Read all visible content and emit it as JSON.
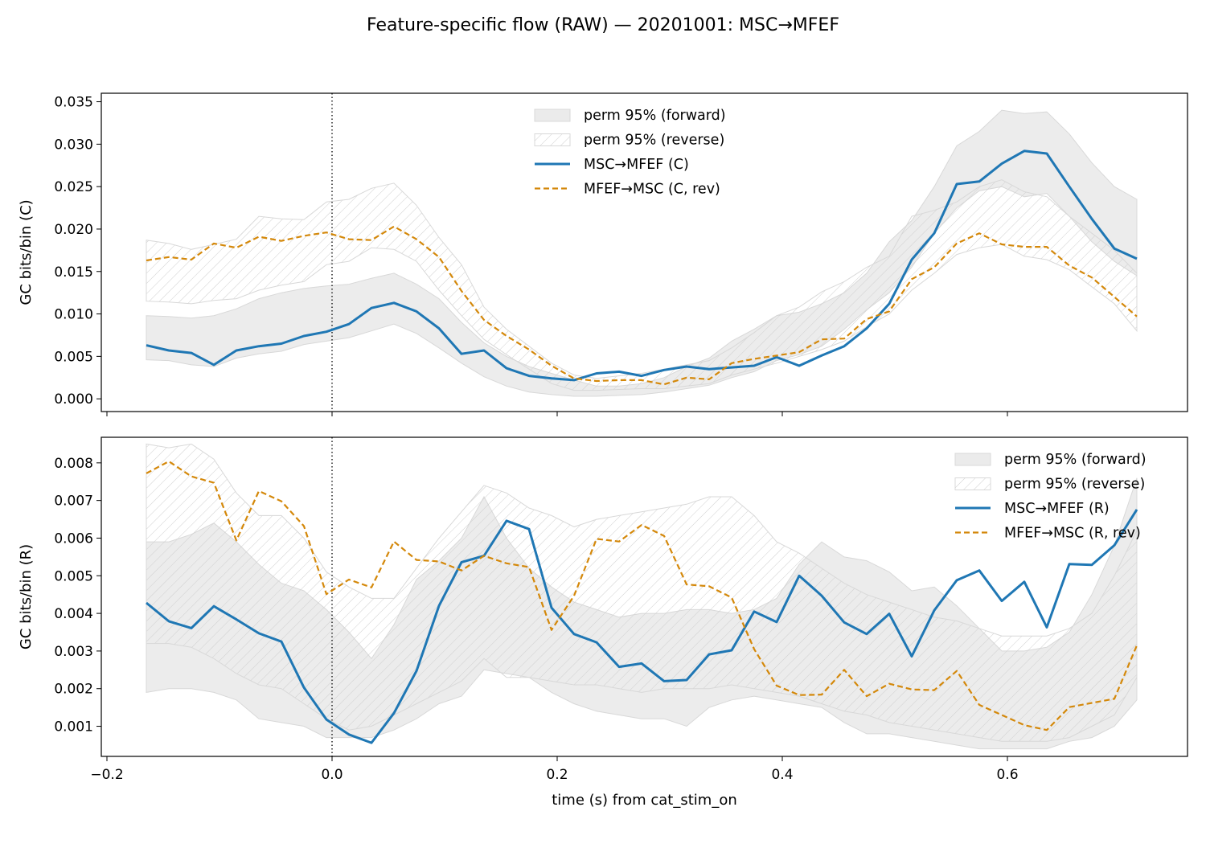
{
  "figure": {
    "title": "Feature-specific flow (RAW) — 20201001: MSC→MFEF"
  },
  "colors": {
    "forward": "#1f77b4",
    "reverse": "#d4880a",
    "band_fill": "#ebebeb",
    "band_edge": "#d8d8d8",
    "hatch": "#cfcfcf"
  },
  "chart_data": [
    {
      "type": "line",
      "panel": "top",
      "title": "",
      "xlabel": "",
      "ylabel": "GC bits/bin (C)",
      "xlim": [
        -0.205,
        0.76
      ],
      "ylim": [
        -0.0015,
        0.036
      ],
      "xticks": [
        -0.2,
        0.0,
        0.2,
        0.4,
        0.6
      ],
      "xtick_labels": [
        "",
        "",
        "",
        "",
        ""
      ],
      "yticks": [
        0.0,
        0.005,
        0.01,
        0.015,
        0.02,
        0.025,
        0.03,
        0.035
      ],
      "ytick_labels": [
        "0.000",
        "0.005",
        "0.010",
        "0.015",
        "0.020",
        "0.025",
        "0.030",
        "0.035"
      ],
      "vline_x": 0.0,
      "legend_position": "upper-center",
      "grid": false,
      "x": [
        -0.165,
        -0.145,
        -0.125,
        -0.105,
        -0.085,
        -0.065,
        -0.045,
        -0.025,
        -0.005,
        0.015,
        0.035,
        0.055,
        0.075,
        0.095,
        0.115,
        0.135,
        0.155,
        0.175,
        0.195,
        0.215,
        0.235,
        0.255,
        0.275,
        0.295,
        0.315,
        0.335,
        0.355,
        0.375,
        0.395,
        0.415,
        0.435,
        0.455,
        0.475,
        0.495,
        0.515,
        0.535,
        0.555,
        0.575,
        0.595,
        0.615,
        0.635,
        0.655,
        0.675,
        0.695,
        0.715
      ],
      "bands": [
        {
          "name": "perm 95% (forward)",
          "style": "solid",
          "upper": [
            0.0098,
            0.0097,
            0.0095,
            0.0098,
            0.0106,
            0.0118,
            0.0125,
            0.013,
            0.0133,
            0.0135,
            0.0142,
            0.0148,
            0.0135,
            0.0118,
            0.009,
            0.0066,
            0.005,
            0.0038,
            0.003,
            0.0022,
            0.0015,
            0.0015,
            0.0018,
            0.0025,
            0.0038,
            0.0048,
            0.0068,
            0.0082,
            0.0098,
            0.0102,
            0.0112,
            0.0125,
            0.0148,
            0.0185,
            0.021,
            0.025,
            0.0298,
            0.0315,
            0.034,
            0.0336,
            0.0338,
            0.0312,
            0.0278,
            0.025,
            0.0235
          ],
          "lower": [
            0.0046,
            0.0045,
            0.004,
            0.0038,
            0.0048,
            0.0053,
            0.0056,
            0.0064,
            0.0068,
            0.0072,
            0.008,
            0.0088,
            0.0077,
            0.006,
            0.0042,
            0.0026,
            0.0015,
            0.0008,
            0.0005,
            0.0003,
            0.0003,
            0.0004,
            0.0005,
            0.0008,
            0.0012,
            0.0016,
            0.0025,
            0.0032,
            0.0045,
            0.0052,
            0.0062,
            0.0082,
            0.0105,
            0.0125,
            0.0155,
            0.0195,
            0.0225,
            0.0245,
            0.025,
            0.0238,
            0.0242,
            0.0215,
            0.0185,
            0.0162,
            0.0145
          ]
        },
        {
          "name": "perm 95% (reverse)",
          "style": "hatch",
          "upper": [
            0.0187,
            0.0183,
            0.0176,
            0.0182,
            0.0188,
            0.0215,
            0.0212,
            0.0211,
            0.0232,
            0.0235,
            0.0248,
            0.0254,
            0.0228,
            0.019,
            0.0158,
            0.0108,
            0.0082,
            0.0062,
            0.0042,
            0.0028,
            0.0024,
            0.0027,
            0.003,
            0.0035,
            0.004,
            0.0045,
            0.006,
            0.0078,
            0.0098,
            0.0108,
            0.0126,
            0.0138,
            0.0155,
            0.0168,
            0.0215,
            0.0222,
            0.0232,
            0.025,
            0.0258,
            0.0244,
            0.0238,
            0.0215,
            0.0195,
            0.0175,
            0.0148
          ],
          "lower": [
            0.0115,
            0.0114,
            0.0112,
            0.0116,
            0.0118,
            0.0128,
            0.0134,
            0.0138,
            0.0158,
            0.0162,
            0.0178,
            0.0176,
            0.0162,
            0.0128,
            0.0098,
            0.007,
            0.0052,
            0.0035,
            0.0018,
            0.001,
            0.001,
            0.0011,
            0.0012,
            0.0012,
            0.0015,
            0.0018,
            0.0028,
            0.0035,
            0.0042,
            0.005,
            0.0058,
            0.0068,
            0.0085,
            0.01,
            0.0128,
            0.0148,
            0.017,
            0.0178,
            0.0182,
            0.0168,
            0.0164,
            0.0152,
            0.0132,
            0.0112,
            0.008
          ]
        }
      ],
      "series": [
        {
          "name": "MSC→MFEF (C)",
          "style": "solid",
          "values": [
            0.0063,
            0.0057,
            0.0054,
            0.004,
            0.0057,
            0.0062,
            0.0065,
            0.0074,
            0.0079,
            0.0088,
            0.0107,
            0.0113,
            0.0103,
            0.0083,
            0.0053,
            0.0057,
            0.0036,
            0.0027,
            0.0024,
            0.0022,
            0.003,
            0.0032,
            0.0027,
            0.0034,
            0.0038,
            0.0035,
            0.0037,
            0.0039,
            0.0049,
            0.0039,
            0.0051,
            0.0062,
            0.0083,
            0.0112,
            0.0164,
            0.0195,
            0.0253,
            0.0256,
            0.0277,
            0.0292,
            0.0289,
            0.025,
            0.0212,
            0.0177,
            0.0165
          ]
        },
        {
          "name": "MFEF→MSC (C, rev)",
          "style": "dashed",
          "values": [
            0.0163,
            0.0167,
            0.0164,
            0.0183,
            0.0178,
            0.0191,
            0.0186,
            0.0192,
            0.0196,
            0.0188,
            0.0187,
            0.0203,
            0.0188,
            0.0167,
            0.0127,
            0.0093,
            0.0074,
            0.0058,
            0.0039,
            0.0024,
            0.0021,
            0.0022,
            0.0022,
            0.0017,
            0.0025,
            0.0023,
            0.0042,
            0.0047,
            0.0051,
            0.0055,
            0.007,
            0.0071,
            0.0094,
            0.0103,
            0.0141,
            0.0155,
            0.0183,
            0.0195,
            0.0182,
            0.0179,
            0.0179,
            0.0157,
            0.0143,
            0.012,
            0.0097
          ]
        }
      ]
    },
    {
      "type": "line",
      "panel": "bottom",
      "title": "",
      "xlabel": "time (s) from cat_stim_on",
      "ylabel": "GC bits/bin (R)",
      "xlim": [
        -0.205,
        0.76
      ],
      "ylim": [
        0.0002,
        0.00868
      ],
      "xticks": [
        -0.2,
        0.0,
        0.2,
        0.4,
        0.6
      ],
      "xtick_labels": [
        "−0.2",
        "0.0",
        "0.2",
        "0.4",
        "0.6"
      ],
      "yticks": [
        0.001,
        0.002,
        0.003,
        0.004,
        0.005,
        0.006,
        0.007,
        0.008
      ],
      "ytick_labels": [
        "0.001",
        "0.002",
        "0.003",
        "0.004",
        "0.005",
        "0.006",
        "0.007",
        "0.008"
      ],
      "vline_x": 0.0,
      "legend_position": "upper-right",
      "grid": false,
      "x": [
        -0.165,
        -0.145,
        -0.125,
        -0.105,
        -0.085,
        -0.065,
        -0.045,
        -0.025,
        -0.005,
        0.015,
        0.035,
        0.055,
        0.075,
        0.095,
        0.115,
        0.135,
        0.155,
        0.175,
        0.195,
        0.215,
        0.235,
        0.255,
        0.275,
        0.295,
        0.315,
        0.335,
        0.355,
        0.375,
        0.395,
        0.415,
        0.435,
        0.455,
        0.475,
        0.495,
        0.515,
        0.535,
        0.555,
        0.575,
        0.595,
        0.615,
        0.635,
        0.655,
        0.675,
        0.695,
        0.715
      ],
      "bands": [
        {
          "name": "perm 95% (forward)",
          "style": "solid",
          "upper": [
            0.0059,
            0.0059,
            0.0061,
            0.0064,
            0.0059,
            0.0053,
            0.0048,
            0.0046,
            0.0041,
            0.0035,
            0.0028,
            0.0037,
            0.0049,
            0.0054,
            0.006,
            0.0071,
            0.006,
            0.0052,
            0.0047,
            0.0043,
            0.0041,
            0.0039,
            0.004,
            0.004,
            0.0041,
            0.0041,
            0.004,
            0.0041,
            0.0044,
            0.0053,
            0.0059,
            0.0055,
            0.0054,
            0.0051,
            0.0046,
            0.0047,
            0.0042,
            0.0036,
            0.003,
            0.003,
            0.0031,
            0.0035,
            0.0045,
            0.0058,
            0.0076
          ],
          "lower": [
            0.0019,
            0.002,
            0.002,
            0.0019,
            0.0017,
            0.0012,
            0.0011,
            0.001,
            0.0007,
            0.0007,
            0.0007,
            0.0009,
            0.0012,
            0.0016,
            0.0018,
            0.0025,
            0.0024,
            0.0023,
            0.0019,
            0.0016,
            0.0014,
            0.0013,
            0.0012,
            0.0012,
            0.001,
            0.0015,
            0.0017,
            0.0018,
            0.0017,
            0.0016,
            0.0015,
            0.0011,
            0.0008,
            0.0008,
            0.0007,
            0.0006,
            0.0005,
            0.0004,
            0.0004,
            0.0004,
            0.0004,
            0.0006,
            0.0007,
            0.001,
            0.0017
          ]
        },
        {
          "name": "perm 95% (reverse)",
          "style": "hatch",
          "upper": [
            0.0085,
            0.0084,
            0.0085,
            0.0081,
            0.0072,
            0.0066,
            0.0066,
            0.006,
            0.0051,
            0.0047,
            0.0044,
            0.0044,
            0.0052,
            0.006,
            0.0067,
            0.0074,
            0.0072,
            0.0068,
            0.0066,
            0.0063,
            0.0065,
            0.0066,
            0.0067,
            0.0068,
            0.0069,
            0.0071,
            0.0071,
            0.0066,
            0.0059,
            0.0056,
            0.0052,
            0.0048,
            0.0045,
            0.0043,
            0.0041,
            0.0039,
            0.0038,
            0.0036,
            0.0034,
            0.0034,
            0.0034,
            0.0036,
            0.004,
            0.005,
            0.0062
          ],
          "lower": [
            0.0032,
            0.0032,
            0.0031,
            0.0028,
            0.0024,
            0.0021,
            0.002,
            0.0016,
            0.0012,
            0.0009,
            0.001,
            0.0013,
            0.0016,
            0.0019,
            0.0022,
            0.0028,
            0.0023,
            0.0023,
            0.0022,
            0.0021,
            0.0021,
            0.002,
            0.0019,
            0.002,
            0.002,
            0.002,
            0.0021,
            0.002,
            0.0019,
            0.0018,
            0.0016,
            0.0014,
            0.0013,
            0.0011,
            0.001,
            0.0009,
            0.0008,
            0.0007,
            0.0006,
            0.0006,
            0.0006,
            0.0007,
            0.001,
            0.0013,
            0.0023
          ]
        }
      ],
      "series": [
        {
          "name": "MSC→MFEF (R)",
          "style": "solid",
          "values": [
            0.00428,
            0.00379,
            0.00361,
            0.00419,
            0.00384,
            0.00347,
            0.00325,
            0.00203,
            0.00118,
            0.00078,
            0.00056,
            0.00135,
            0.00247,
            0.0042,
            0.00536,
            0.00553,
            0.00646,
            0.00624,
            0.00415,
            0.00345,
            0.00323,
            0.00258,
            0.00267,
            0.0022,
            0.00223,
            0.00291,
            0.00302,
            0.00405,
            0.00377,
            0.005,
            0.00447,
            0.00376,
            0.00345,
            0.00399,
            0.00286,
            0.00408,
            0.00488,
            0.00514,
            0.00433,
            0.00484,
            0.00363,
            0.00531,
            0.00529,
            0.00581,
            0.00676
          ]
        },
        {
          "name": "MFEF→MSC (R, rev)",
          "style": "dashed",
          "values": [
            0.00772,
            0.00804,
            0.00764,
            0.00747,
            0.00594,
            0.00725,
            0.00698,
            0.00632,
            0.00451,
            0.0049,
            0.00469,
            0.00591,
            0.00542,
            0.00538,
            0.00514,
            0.00553,
            0.00533,
            0.00523,
            0.00356,
            0.00447,
            0.00598,
            0.00591,
            0.00635,
            0.00606,
            0.00477,
            0.00472,
            0.00442,
            0.00305,
            0.00208,
            0.00183,
            0.00184,
            0.0025,
            0.0018,
            0.00213,
            0.00198,
            0.00196,
            0.00247,
            0.00157,
            0.0013,
            0.00103,
            0.0009,
            0.00151,
            0.00162,
            0.00173,
            0.00315
          ]
        }
      ]
    }
  ]
}
